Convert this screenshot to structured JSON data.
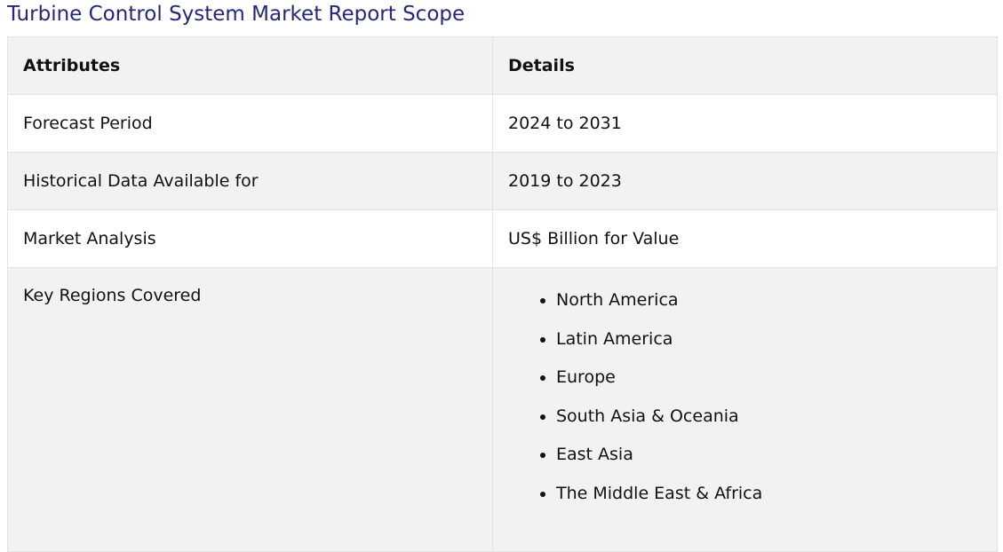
{
  "title": "Turbine Control System Market Report Scope",
  "table": {
    "headers": [
      "Attributes",
      "Details"
    ],
    "rows": [
      {
        "attribute": "Forecast Period",
        "detail": "2024 to 2031"
      },
      {
        "attribute": "Historical Data Available for",
        "detail": "2019 to 2023"
      },
      {
        "attribute": "Market Analysis",
        "detail": "US$ Billion for Value"
      }
    ],
    "regions": {
      "attribute": "Key Regions Covered",
      "items": [
        "North America",
        "Latin America",
        "Europe",
        "South Asia & Oceania",
        "East Asia",
        "The Middle East & Africa"
      ]
    }
  },
  "colors": {
    "title": "#24287a",
    "header_bg": "#f2f2f2",
    "alt_row_bg": "#f2f2f2",
    "border": "#e2e2e2"
  }
}
